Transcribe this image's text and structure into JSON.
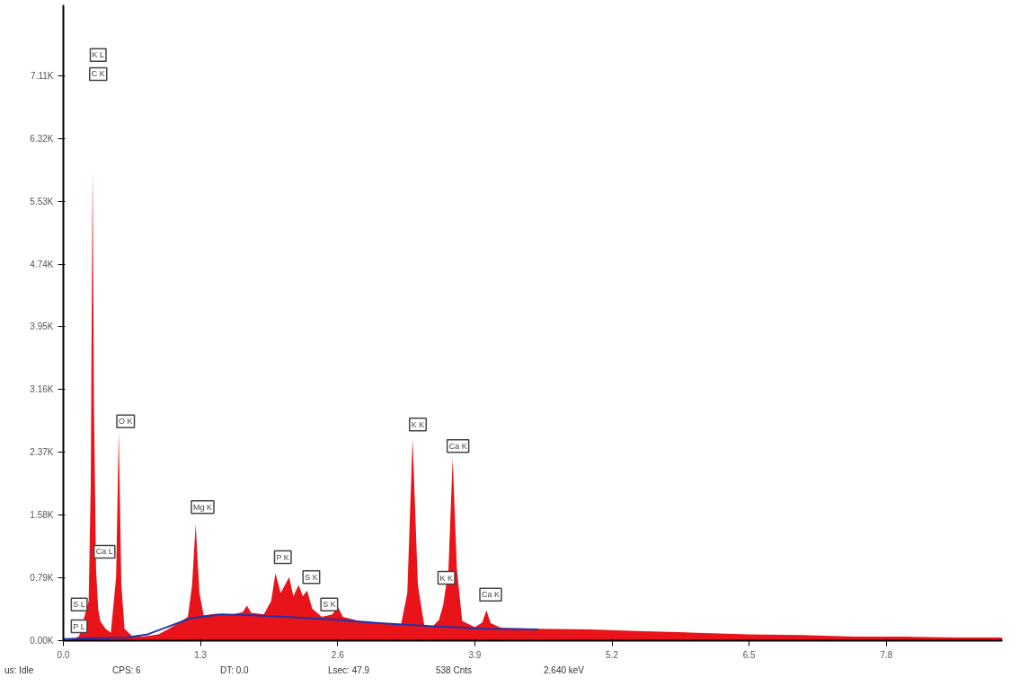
{
  "chart_data": {
    "type": "area",
    "xlim": [
      0,
      8.9
    ],
    "ylim": [
      0,
      8000
    ],
    "xticks": [
      {
        "value": 0,
        "label": "0.0"
      },
      1.3,
      2.6,
      3.9,
      5.2,
      6.5,
      7.8
    ],
    "yticks": [
      {
        "value": 0,
        "label": "0.00K"
      },
      {
        "value": 790,
        "label": "0.79K"
      },
      {
        "value": 1580,
        "label": "1.58K"
      },
      {
        "value": 2370,
        "label": "2.37K"
      },
      {
        "value": 3160,
        "label": "3.16K"
      },
      {
        "value": 3950,
        "label": "3.95K"
      },
      {
        "value": 4740,
        "label": "4.74K"
      },
      {
        "value": 5530,
        "label": "5.53K"
      },
      {
        "value": 6320,
        "label": "6.32K"
      },
      {
        "value": 7110,
        "label": "7.11K"
      }
    ],
    "grid": false,
    "series": [
      {
        "color": "#e8141a",
        "x": [
          0.0,
          0.1,
          0.15,
          0.24,
          0.26,
          0.277,
          0.29,
          0.31,
          0.33,
          0.35,
          0.4,
          0.45,
          0.5,
          0.525,
          0.55,
          0.58,
          0.65,
          0.75,
          0.9,
          1.0,
          1.1,
          1.18,
          1.22,
          1.254,
          1.29,
          1.33,
          1.45,
          1.6,
          1.7,
          1.74,
          1.78,
          1.9,
          1.97,
          2.01,
          2.06,
          2.1,
          2.14,
          2.18,
          2.23,
          2.27,
          2.31,
          2.36,
          2.45,
          2.55,
          2.6,
          2.65,
          2.8,
          3.0,
          3.2,
          3.26,
          3.31,
          3.36,
          3.42,
          3.5,
          3.56,
          3.6,
          3.65,
          3.69,
          3.73,
          3.78,
          3.9,
          3.97,
          4.01,
          4.05,
          4.15,
          4.5,
          5.0,
          5.5,
          6.0,
          6.5,
          7.0,
          7.5,
          8.0,
          8.5,
          8.9
        ],
        "values": [
          0,
          20,
          60,
          500,
          2000,
          5950,
          3000,
          900,
          400,
          250,
          150,
          100,
          800,
          2630,
          700,
          150,
          60,
          50,
          80,
          150,
          230,
          300,
          700,
          1470,
          600,
          320,
          340,
          330,
          360,
          440,
          350,
          330,
          500,
          850,
          600,
          700,
          800,
          560,
          700,
          560,
          630,
          400,
          300,
          330,
          430,
          300,
          250,
          220,
          200,
          600,
          2540,
          700,
          200,
          180,
          260,
          450,
          900,
          2300,
          900,
          250,
          170,
          230,
          380,
          220,
          160,
          150,
          140,
          120,
          100,
          80,
          70,
          50,
          50,
          40,
          40
        ]
      },
      {
        "type": "line",
        "color": "#2233aa",
        "x": [
          0.0,
          0.3,
          0.6,
          0.8,
          1.0,
          1.2,
          1.5,
          1.8,
          2.1,
          2.5,
          3.0,
          3.5,
          4.0,
          4.5
        ],
        "values": [
          20,
          30,
          40,
          80,
          180,
          280,
          330,
          320,
          300,
          270,
          220,
          180,
          150,
          140
        ]
      }
    ],
    "annotations": [
      {
        "text": "K L",
        "x": 0.33,
        "y": 7370
      },
      {
        "text": "C K",
        "x": 0.33,
        "y": 7130
      },
      {
        "text": "O K",
        "x": 0.59,
        "y": 2760
      },
      {
        "text": "Mg K",
        "x": 1.32,
        "y": 1680
      },
      {
        "text": "Ca L",
        "x": 0.39,
        "y": 1120
      },
      {
        "text": "S L",
        "x": 0.15,
        "y": 455
      },
      {
        "text": "P L",
        "x": 0.15,
        "y": 180
      },
      {
        "text": "P K",
        "x": 2.08,
        "y": 1050
      },
      {
        "text": "S K",
        "x": 2.35,
        "y": 800
      },
      {
        "text": "S K",
        "x": 2.52,
        "y": 455
      },
      {
        "text": "K K",
        "x": 3.36,
        "y": 2720
      },
      {
        "text": "Ca K",
        "x": 3.74,
        "y": 2450
      },
      {
        "text": "K K",
        "x": 3.63,
        "y": 790
      },
      {
        "text": "Ca K",
        "x": 4.05,
        "y": 580
      },
      "us: Idle",
      "CPS: 6",
      "DT: 0.0",
      "Lsec: 47.9",
      "538 Cnts",
      "2.640 keV"
    ]
  }
}
